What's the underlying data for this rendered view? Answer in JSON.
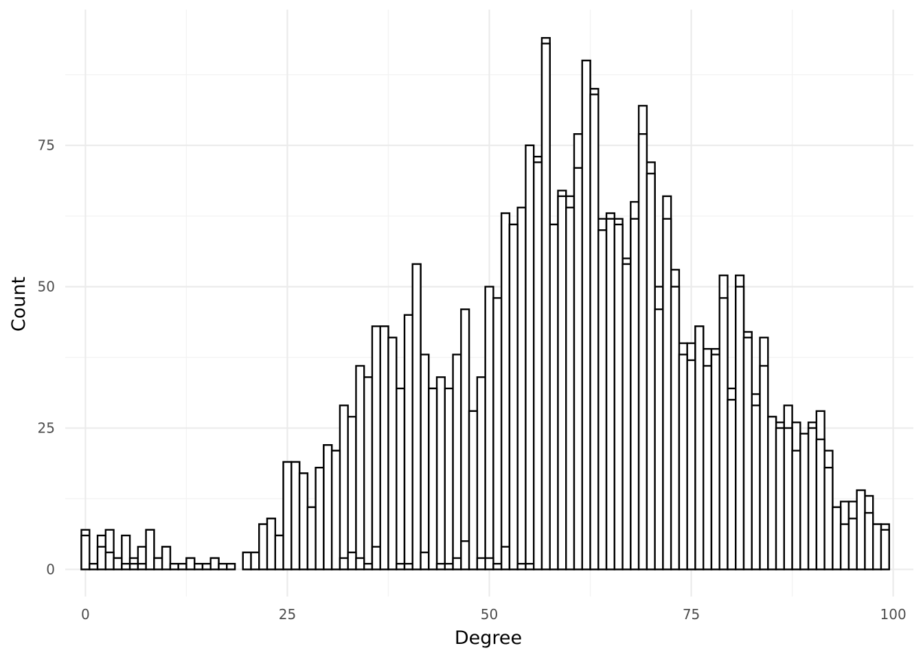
{
  "chart_data": {
    "type": "bar",
    "title": "",
    "xlabel": "Degree",
    "ylabel": "Count",
    "xlim": [
      -2.5,
      102.5
    ],
    "ylim": [
      -4.8,
      99
    ],
    "x_ticks": [
      0,
      25,
      50,
      75,
      100
    ],
    "y_ticks": [
      0,
      25,
      50,
      75
    ],
    "x_tick_labels": [
      "0",
      "25",
      "50",
      "75",
      "100"
    ],
    "y_tick_labels": [
      "0",
      "25",
      "50",
      "75"
    ],
    "bin_width": 1,
    "grid": true,
    "legend": "none",
    "outline_color": "#000000",
    "fill_color": "#ffffff",
    "series": [
      {
        "x": [
          0,
          1,
          2,
          3,
          4,
          5,
          6,
          7,
          8,
          9,
          10,
          11,
          12,
          13,
          14,
          15,
          16,
          17,
          18,
          20,
          21,
          22,
          23,
          24,
          25,
          26,
          27,
          28,
          29,
          30,
          31,
          32,
          33,
          34,
          35,
          36,
          37,
          38,
          39,
          40,
          41,
          42,
          43,
          44,
          45,
          46,
          47,
          48,
          49,
          50,
          51,
          52,
          53,
          54,
          55,
          56,
          57,
          58,
          59,
          60,
          61,
          62,
          63,
          64,
          65,
          66,
          67,
          68,
          69,
          70,
          71,
          72,
          73,
          74,
          75,
          76,
          77,
          78,
          79,
          80,
          81,
          82,
          83,
          84,
          85,
          86,
          87,
          88,
          89,
          90,
          91,
          92,
          93,
          94,
          95,
          96,
          97,
          98,
          99
        ],
        "values": [
          7,
          1,
          6,
          7,
          2,
          6,
          2,
          4,
          7,
          2,
          4,
          1,
          1,
          2,
          1,
          1,
          2,
          1,
          1,
          3,
          3,
          8,
          9,
          6,
          19,
          19,
          17,
          11,
          18,
          22,
          21,
          29,
          27,
          36,
          34,
          43,
          43,
          41,
          32,
          45,
          54,
          38,
          32,
          34,
          32,
          38,
          46,
          28,
          34,
          50,
          48,
          63,
          61,
          64,
          75,
          73,
          94,
          61,
          67,
          66,
          77,
          90,
          85,
          62,
          63,
          62,
          55,
          65,
          82,
          72,
          50,
          66,
          53,
          40,
          40,
          43,
          39,
          39,
          52,
          32,
          52,
          42,
          31,
          41,
          27,
          26,
          29,
          26,
          24,
          26,
          28,
          21,
          11,
          12,
          12,
          14,
          13,
          8,
          8
        ]
      },
      {
        "x": [
          0,
          1,
          2,
          3,
          4,
          5,
          6,
          7,
          8,
          9,
          10,
          11,
          12,
          13,
          14,
          15,
          16,
          17,
          18,
          20,
          21,
          22,
          23,
          24,
          25,
          26,
          27,
          28,
          29,
          30,
          31,
          32,
          33,
          34,
          35,
          36,
          37,
          38,
          39,
          40,
          41,
          42,
          43,
          44,
          45,
          46,
          47,
          48,
          49,
          50,
          51,
          52,
          53,
          54,
          55,
          56,
          57,
          58,
          59,
          60,
          61,
          62,
          63,
          64,
          65,
          66,
          67,
          68,
          69,
          70,
          71,
          72,
          73,
          74,
          75,
          76,
          77,
          78,
          79,
          80,
          81,
          82,
          83,
          84,
          85,
          86,
          87,
          88,
          89,
          90,
          91,
          92,
          93,
          94,
          95,
          96,
          97,
          98,
          99
        ],
        "values": [
          6,
          1,
          4,
          3,
          2,
          1,
          1,
          1,
          7,
          2,
          4,
          1,
          1,
          2,
          1,
          1,
          2,
          1,
          1,
          3,
          3,
          8,
          9,
          6,
          19,
          19,
          17,
          11,
          18,
          22,
          21,
          2,
          3,
          2,
          1,
          4,
          43,
          41,
          1,
          1,
          54,
          3,
          32,
          1,
          1,
          2,
          5,
          28,
          2,
          2,
          1,
          4,
          61,
          1,
          1,
          72,
          93,
          61,
          66,
          64,
          71,
          90,
          84,
          60,
          62,
          61,
          54,
          62,
          77,
          70,
          46,
          62,
          50,
          38,
          37,
          43,
          36,
          38,
          48,
          30,
          50,
          41,
          29,
          36,
          27,
          25,
          25,
          21,
          24,
          25,
          23,
          18,
          11,
          8,
          9,
          14,
          10,
          8,
          7
        ]
      }
    ]
  }
}
